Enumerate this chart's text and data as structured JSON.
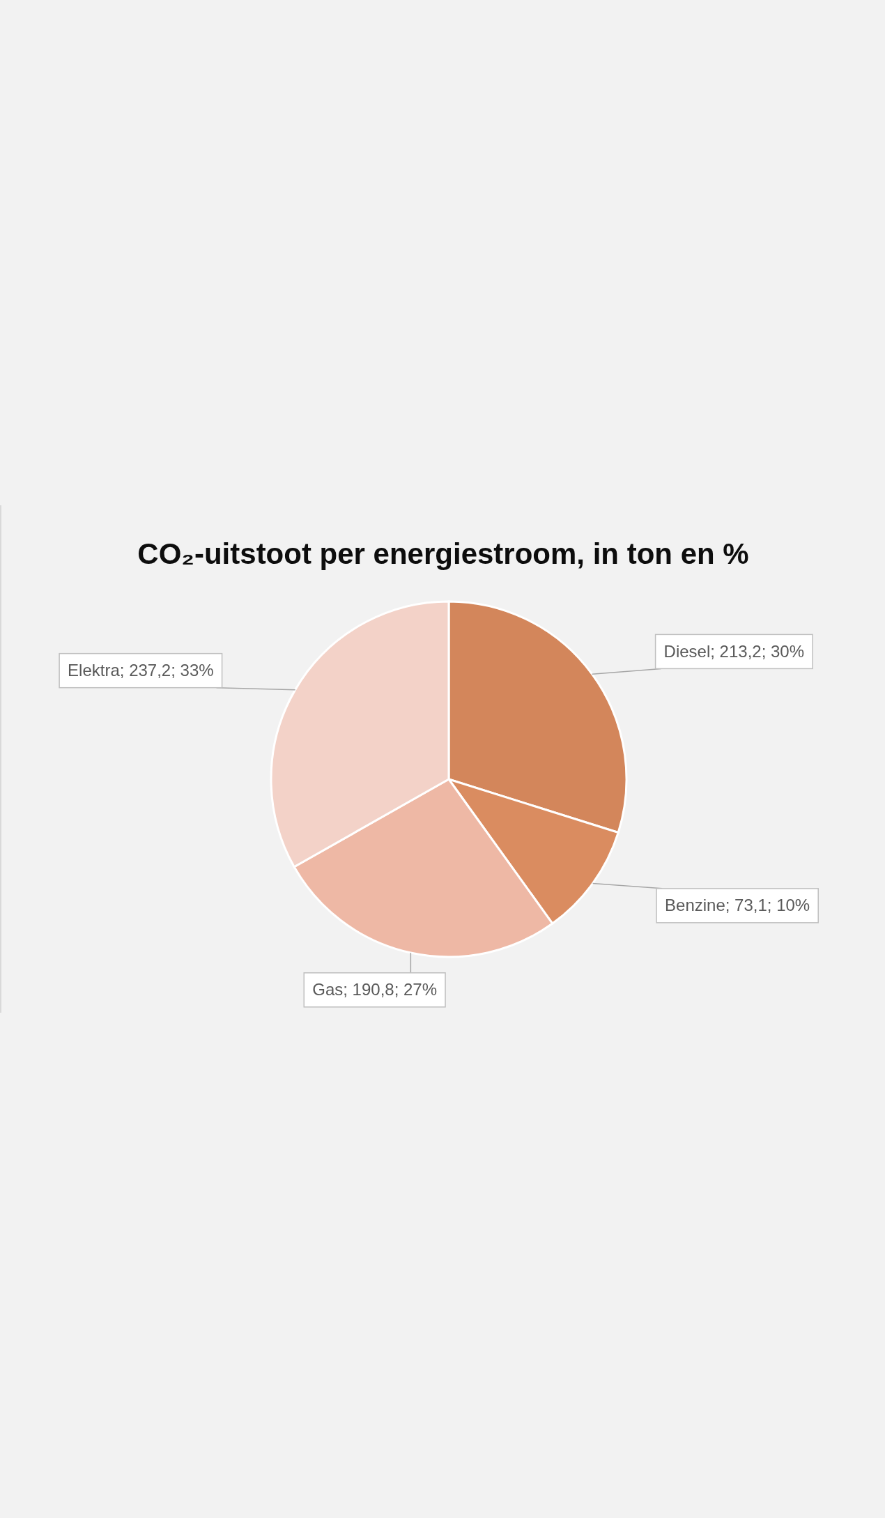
{
  "chart_data": {
    "type": "pie",
    "title": "CO₂-uitstoot per energiestroom, in ton en %",
    "categories": [
      "Diesel",
      "Benzine",
      "Gas",
      "Elektra"
    ],
    "values": [
      213.2,
      73.1,
      190.8,
      237.2
    ],
    "colors": [
      "#d3865b",
      "#da8c60",
      "#eeb8a5",
      "#f3d2c8"
    ],
    "value_labels": [
      "; 213,2; 30%",
      "; 73,1; 10%",
      "; 190,8; 27%",
      "; 237,2; 33%"
    ]
  }
}
